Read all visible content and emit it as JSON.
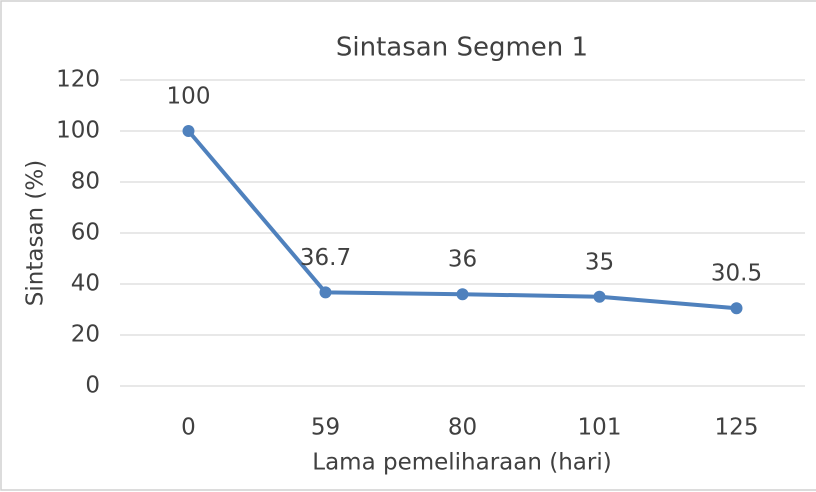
{
  "chart_data": {
    "type": "line",
    "title": "Sintasan Segmen 1",
    "x_label": "Lama pemeliharaan (hari)",
    "y_label": "Sintasan (%)",
    "categories": [
      "0",
      "59",
      "80",
      "101",
      "125"
    ],
    "values": [
      100,
      36.7,
      36,
      35,
      30.5
    ],
    "color": "#4f81bd",
    "ylim": [
      0,
      120
    ],
    "yticks": [
      0,
      20,
      40,
      60,
      80,
      100,
      120
    ],
    "grid": true,
    "data_labels": true
  }
}
